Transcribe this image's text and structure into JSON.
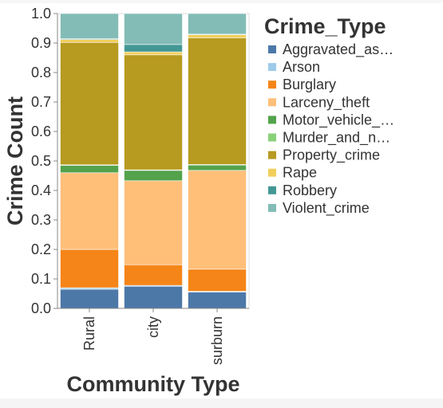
{
  "chart_data": {
    "type": "bar",
    "stacked": true,
    "normalized": true,
    "categories": [
      "Rural",
      "city",
      "surburn"
    ],
    "xlabel": "Community Type",
    "ylabel": "Crime Count",
    "ylim": [
      0,
      1
    ],
    "yticks": [
      "0.0",
      "0.1",
      "0.2",
      "0.3",
      "0.4",
      "0.5",
      "0.6",
      "0.7",
      "0.8",
      "0.9",
      "1.0"
    ],
    "grid": false,
    "legend": {
      "title": "Crime_Type",
      "placement": "right"
    },
    "series": [
      {
        "name": "Aggravated_as…",
        "color": "#4c78a8",
        "values": [
          0.065,
          0.075,
          0.055
        ]
      },
      {
        "name": "Arson",
        "color": "#9ecae9",
        "values": [
          0.005,
          0.003,
          0.003
        ]
      },
      {
        "name": "Burglary",
        "color": "#f58518",
        "values": [
          0.13,
          0.07,
          0.075
        ]
      },
      {
        "name": "Larceny_theft",
        "color": "#ffbf79",
        "values": [
          0.26,
          0.285,
          0.335
        ]
      },
      {
        "name": "Motor_vehicle_…",
        "color": "#54a24b",
        "values": [
          0.025,
          0.035,
          0.018
        ]
      },
      {
        "name": "Murder_and_n…",
        "color": "#88d27a",
        "values": [
          0.002,
          0.002,
          0.002
        ]
      },
      {
        "name": "Property_crime",
        "color": "#b79a20",
        "values": [
          0.415,
          0.39,
          0.43
        ]
      },
      {
        "name": "Rape",
        "color": "#f2cf5b",
        "values": [
          0.01,
          0.01,
          0.01
        ]
      },
      {
        "name": "Robbery",
        "color": "#439894",
        "values": [
          0.003,
          0.025,
          0.002
        ]
      },
      {
        "name": "Violent_crime",
        "color": "#83bcb6",
        "values": [
          0.085,
          0.105,
          0.07
        ]
      }
    ]
  }
}
